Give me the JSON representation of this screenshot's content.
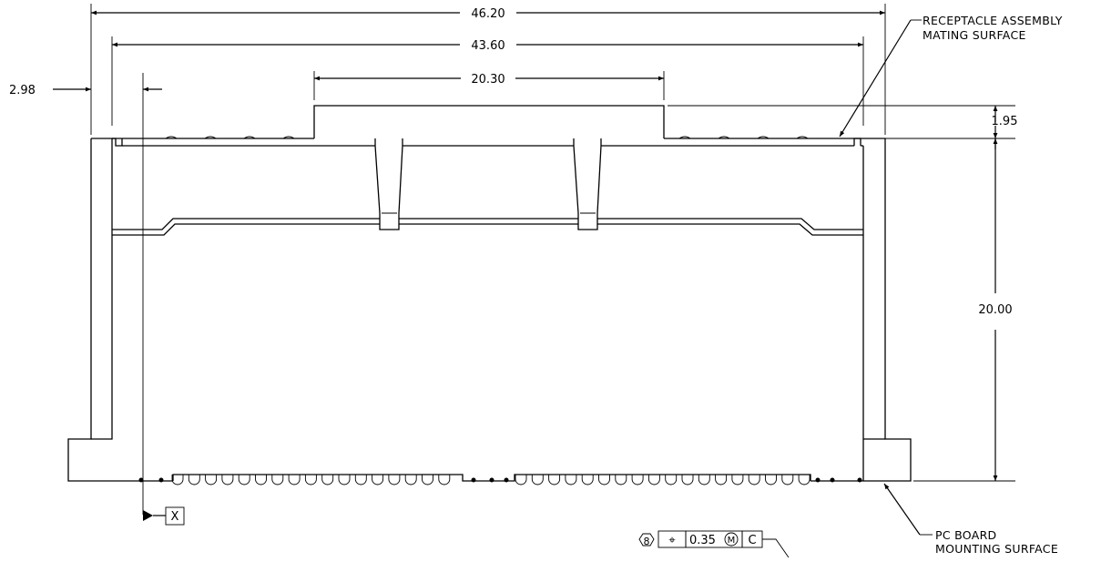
{
  "dimensions": {
    "overall_width": "46.20",
    "inner_width": "43.60",
    "plug_width": "20.30",
    "left_offset": "2.98",
    "plug_height": "1.95",
    "height": "20.00"
  },
  "notes": {
    "receptacle_line1": "RECEPTACLE ASSEMBLY",
    "receptacle_line2": "MATING SURFACE",
    "pcb_line1": "PC BOARD",
    "pcb_line2": "MOUNTING SURFACE"
  },
  "datum": {
    "label": "X"
  },
  "tolerance_frame": {
    "note_number": "8",
    "symbol": "⌖",
    "value": "0.35",
    "modifier": "M",
    "datum": "C"
  }
}
